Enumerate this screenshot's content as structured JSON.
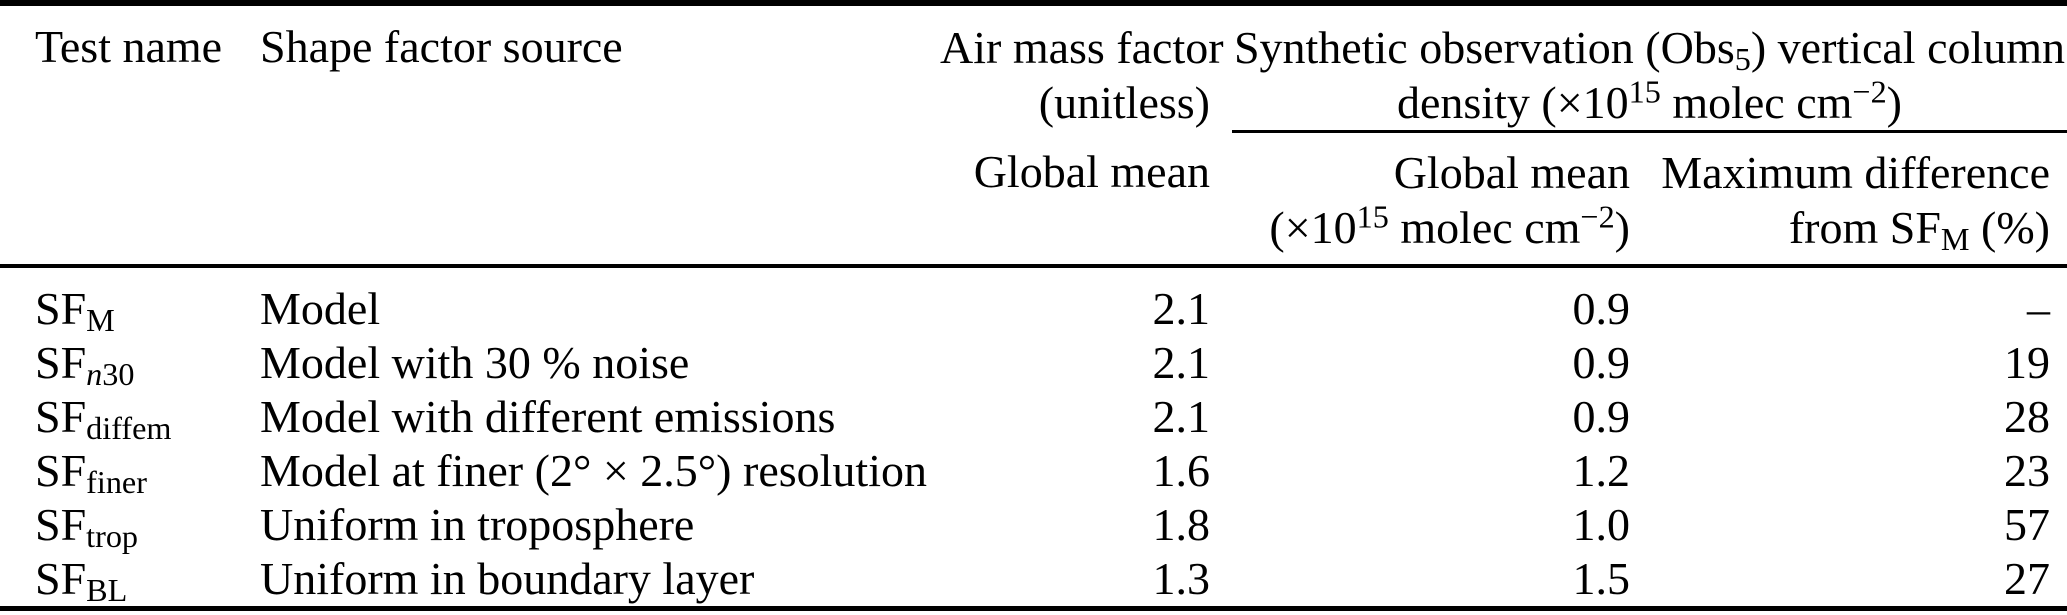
{
  "table": {
    "header": {
      "test_name": "Test name",
      "shape_factor_source": "Shape factor source",
      "air_mass_factor": {
        "line1": "Air mass factor",
        "line2": "(unitless)"
      },
      "synthetic_group": {
        "line1_pre": "Synthetic observation (Obs",
        "obs_sub": "5",
        "line1_post": ") vertical column",
        "line2_pre": "density (×10",
        "exp1": "15",
        "line2_mid": " molec cm",
        "exp2": "−2",
        "line2_post": ")"
      },
      "amf_subheader": "Global mean",
      "vcd_subheader": {
        "line1": "Global mean",
        "line2_pre": "(×10",
        "exp1": "15",
        "line2_mid": " molec cm",
        "exp2": "−2",
        "line2_post": ")"
      },
      "maxdiff_subheader": {
        "line1": "Maximum difference",
        "line2_pre": "from SF",
        "sub": "M",
        "line2_post": " (%)"
      }
    },
    "rows": [
      {
        "name_base": "SF",
        "sub_italic": "",
        "sub_plain": "M",
        "source": "Model",
        "amf": "2.1",
        "vcd": "0.9",
        "maxdiff": "–"
      },
      {
        "name_base": "SF",
        "sub_italic": "n",
        "sub_plain": "30",
        "source": "Model with 30 % noise",
        "amf": "2.1",
        "vcd": "0.9",
        "maxdiff": "19"
      },
      {
        "name_base": "SF",
        "sub_italic": "",
        "sub_plain": "diffem",
        "source": "Model with different emissions",
        "amf": "2.1",
        "vcd": "0.9",
        "maxdiff": "28"
      },
      {
        "name_base": "SF",
        "sub_italic": "",
        "sub_plain": "finer",
        "source": "Model at finer (2° × 2.5°) resolution",
        "amf": "1.6",
        "vcd": "1.2",
        "maxdiff": "23"
      },
      {
        "name_base": "SF",
        "sub_italic": "",
        "sub_plain": "trop",
        "source": "Uniform in troposphere",
        "amf": "1.8",
        "vcd": "1.0",
        "maxdiff": "57"
      },
      {
        "name_base": "SF",
        "sub_italic": "",
        "sub_plain": "BL",
        "source": "Uniform in boundary layer",
        "amf": "1.3",
        "vcd": "1.5",
        "maxdiff": "27"
      }
    ]
  }
}
